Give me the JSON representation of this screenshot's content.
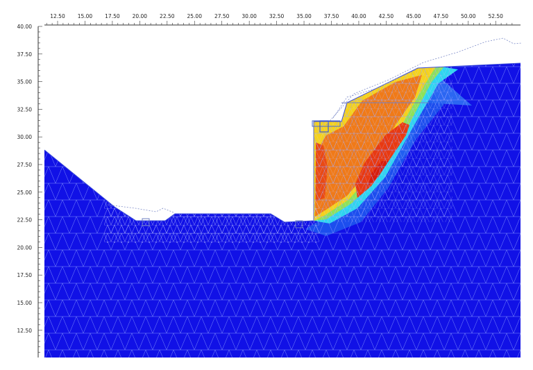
{
  "view": {
    "x_ticks": [
      "12.50",
      "15.00",
      "17.50",
      "20.00",
      "22.50",
      "25.00",
      "27.50",
      "30.00",
      "32.50",
      "35.00",
      "37.50",
      "40.00",
      "42.50",
      "45.00",
      "47.50",
      "50.00",
      "52.50"
    ],
    "y_ticks": [
      "40.00",
      "37.50",
      "35.00",
      "32.50",
      "30.00",
      "27.50",
      "25.00",
      "22.50",
      "20.00",
      "17.50",
      "15.00",
      "12.50"
    ],
    "x_range": [
      10.5,
      54.0
    ],
    "y_range": [
      10.0,
      40.0
    ]
  },
  "colors": {
    "soil_base": "#1111e6",
    "mesh_line": "#8a9cff",
    "red": "#e83a12",
    "orange": "#f07a18",
    "yellow": "#f5d21c",
    "cyan": "#2ed6f0",
    "light_blue": "#1f78f0"
  },
  "plot_type": "finite-element mesh with contour shading"
}
